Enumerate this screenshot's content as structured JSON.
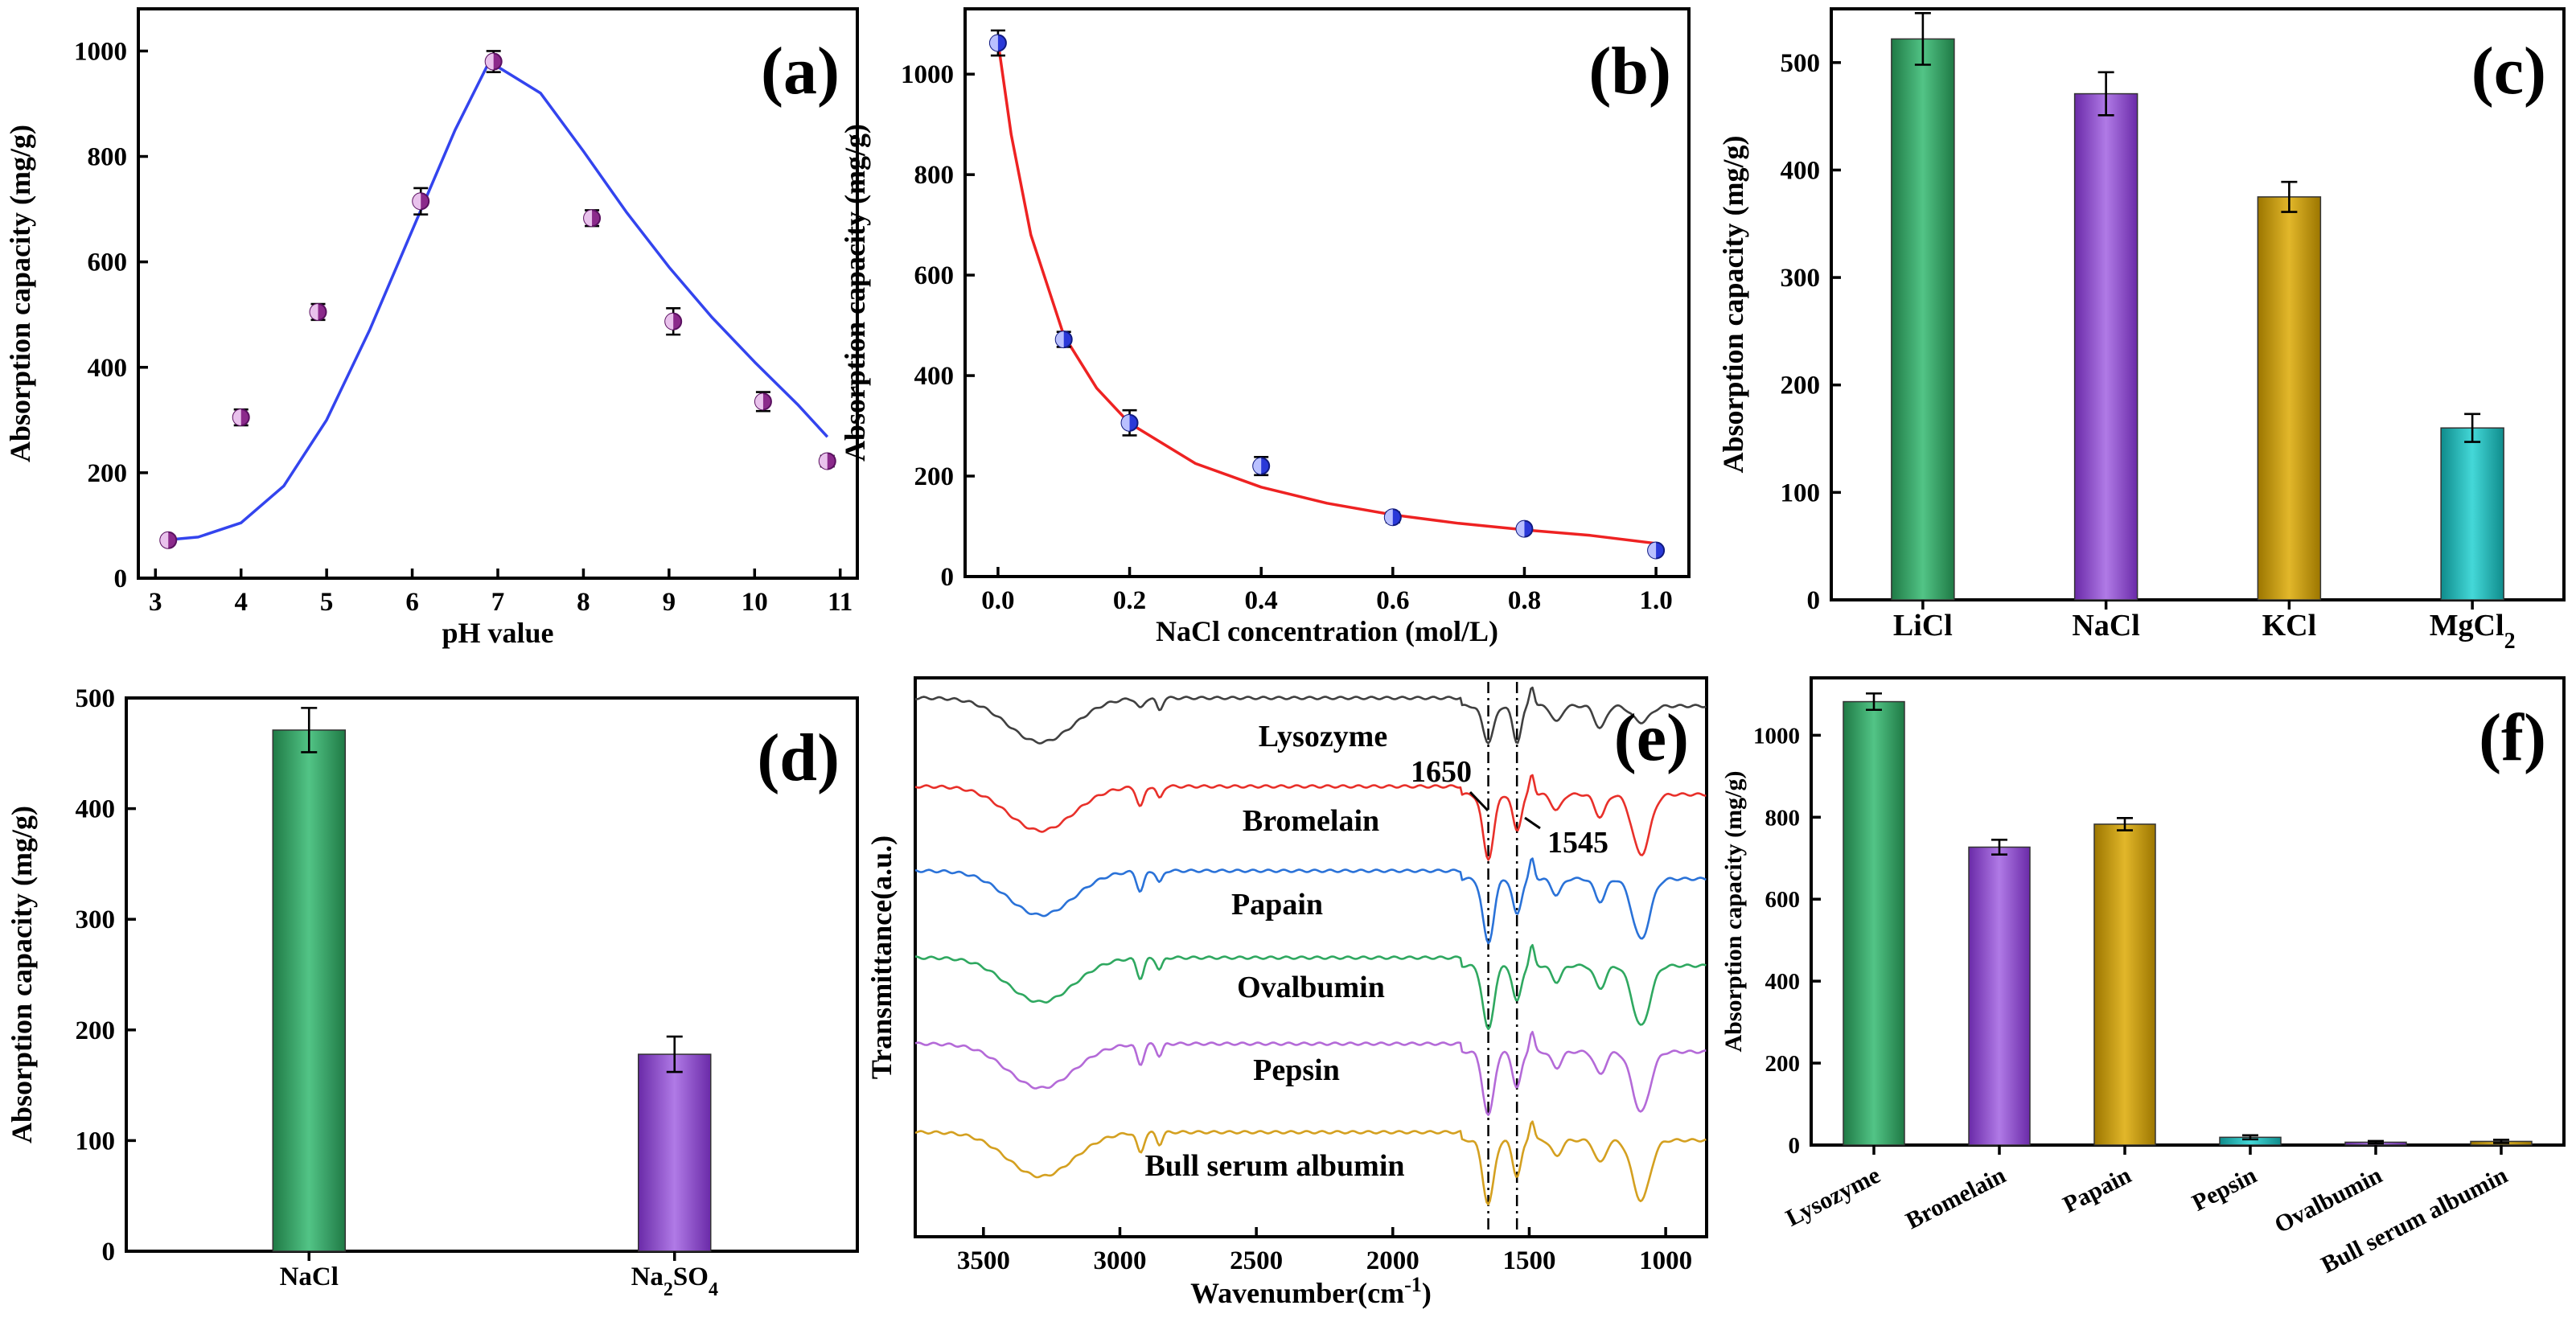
{
  "colors": {
    "lisozyme_green": "#2e9a5c",
    "purple": "#8e45cc",
    "gold": "#c49a00",
    "teal": "#19b2b2",
    "marker_purple": "#8b2a8b",
    "marker_blue": "#2a39d8",
    "fit_blue": "#3344ee",
    "fit_red": "#ee2222"
  },
  "chart_data": [
    {
      "panel": "(a)",
      "type": "scatter",
      "xlabel": "pH value",
      "ylabel": "Absorption capacity (mg/g)",
      "xlim": [
        2.8,
        11.2
      ],
      "ylim": [
        0,
        1080
      ],
      "xticks": [
        3,
        4,
        5,
        6,
        7,
        8,
        9,
        10,
        11
      ],
      "yticks": [
        0,
        200,
        400,
        600,
        800,
        1000
      ],
      "points": {
        "x": [
          3.15,
          4.0,
          4.9,
          6.1,
          6.95,
          8.1,
          9.05,
          10.1,
          10.85
        ],
        "y": [
          72,
          305,
          505,
          715,
          980,
          683,
          487,
          335,
          222
        ],
        "err": [
          8,
          15,
          15,
          25,
          20,
          15,
          25,
          18,
          10
        ]
      },
      "fit_curve": {
        "x": [
          3.1,
          3.5,
          4.0,
          4.5,
          5.0,
          5.5,
          6.0,
          6.5,
          6.9,
          7.5,
          8.0,
          8.5,
          9.0,
          9.5,
          10.0,
          10.5,
          10.85
        ],
        "y": [
          72,
          78,
          105,
          175,
          300,
          470,
          660,
          850,
          980,
          920,
          810,
          695,
          590,
          495,
          410,
          330,
          268
        ]
      }
    },
    {
      "panel": "(b)",
      "type": "scatter",
      "xlabel": "NaCl concentration (mol/L)",
      "ylabel": "Absorption capacity (mg/g)",
      "xlim": [
        -0.05,
        1.05
      ],
      "ylim": [
        0,
        1130
      ],
      "xticks": [
        "0.0",
        "0.2",
        "0.4",
        "0.6",
        "0.8",
        "1.0"
      ],
      "yticks": [
        0,
        200,
        400,
        600,
        800,
        1000
      ],
      "points": {
        "x": [
          0.0,
          0.1,
          0.2,
          0.4,
          0.6,
          0.8,
          1.0
        ],
        "y": [
          1062,
          472,
          306,
          220,
          118,
          95,
          52
        ],
        "err": [
          25,
          15,
          25,
          18,
          10,
          6,
          5
        ]
      },
      "fit_curve": {
        "x": [
          0.0,
          0.02,
          0.05,
          0.1,
          0.15,
          0.2,
          0.3,
          0.4,
          0.5,
          0.6,
          0.7,
          0.8,
          0.9,
          1.0
        ],
        "y": [
          1065,
          880,
          680,
          480,
          375,
          305,
          225,
          178,
          146,
          123,
          106,
          93,
          82,
          66
        ]
      }
    },
    {
      "panel": "(c)",
      "type": "bar",
      "ylabel": "Absorption capacity (mg/g)",
      "categories": [
        "LiCl",
        "NaCl",
        "KCl",
        "MgCl"
      ],
      "category_subscripts": [
        "",
        "",
        "",
        "2"
      ],
      "values": [
        522,
        471,
        375,
        160
      ],
      "err": [
        24,
        20,
        14,
        13
      ],
      "ylim": [
        0,
        550
      ],
      "yticks": [
        0,
        100,
        200,
        300,
        400,
        500
      ]
    },
    {
      "panel": "(d)",
      "type": "bar",
      "ylabel": "Absorption capacity (mg/g)",
      "categories": [
        "NaCl",
        "Na"
      ],
      "category_subscripts": [
        "",
        "2"
      ],
      "category_suffix": [
        "",
        "SO"
      ],
      "category_suffix_subscripts": [
        "",
        "4"
      ],
      "values": [
        471,
        178
      ],
      "err": [
        20,
        16
      ],
      "ylim": [
        0,
        500
      ],
      "yticks": [
        0,
        100,
        200,
        300,
        400,
        500
      ]
    },
    {
      "panel": "(e)",
      "type": "line",
      "xlabel": "Wavenumber(cm",
      "xlabel_sup": "-1",
      "xlabel_close": ")",
      "ylabel": "Transmittance(a.u.)",
      "xlim": [
        3750,
        850
      ],
      "xticks": [
        3500,
        3000,
        2500,
        2000,
        1500,
        1000
      ],
      "annotations": [
        "1650",
        "1545"
      ],
      "reference_lines": [
        1650,
        1545
      ],
      "series": [
        {
          "name": "Lysozyme",
          "offset": 0
        },
        {
          "name": "Bromelain",
          "offset": 1
        },
        {
          "name": "Papain",
          "offset": 2
        },
        {
          "name": "Ovalbumin",
          "offset": 3
        },
        {
          "name": "Pepsin",
          "offset": 4
        },
        {
          "name": "Bull serum albumin",
          "offset": 5
        }
      ]
    },
    {
      "panel": "(f)",
      "type": "bar",
      "ylabel": "Absorption capacity (mg/g)",
      "categories": [
        "Lysozyme",
        "Bromelain",
        "Papain",
        "Pepsin",
        "Ovalbumin",
        "Bull serum albumin"
      ],
      "values": [
        1082,
        727,
        783,
        19,
        7,
        9
      ],
      "err": [
        20,
        18,
        15,
        5,
        3,
        4
      ],
      "ylim": [
        0,
        1140
      ],
      "yticks": [
        0,
        200,
        400,
        600,
        800,
        1000
      ]
    }
  ]
}
